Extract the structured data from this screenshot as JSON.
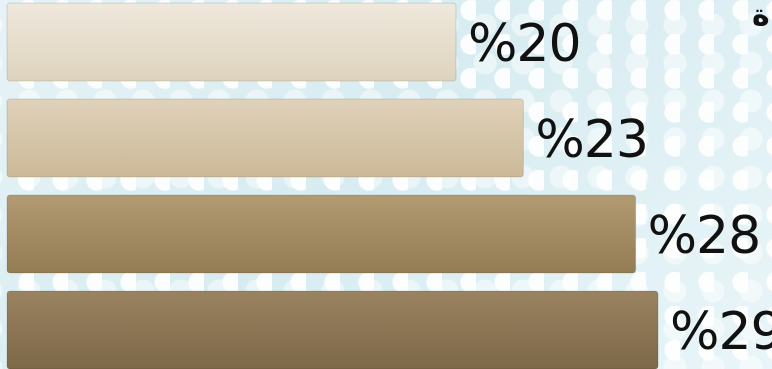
{
  "chart_data": {
    "type": "bar",
    "orientation": "horizontal",
    "categories": [
      "",
      "",
      "",
      ""
    ],
    "values": [
      20,
      23,
      28,
      29
    ],
    "labels": [
      "%20",
      "%23",
      "%28",
      "%29"
    ],
    "colors": [
      "#e6ddcd",
      "#d6c6a9",
      "#a48c63",
      "#8d7752"
    ],
    "xlim": [
      0,
      32
    ]
  },
  "partial_text": "ة"
}
